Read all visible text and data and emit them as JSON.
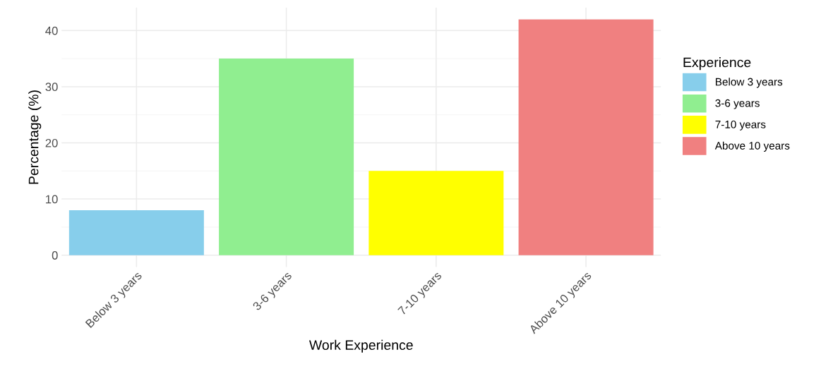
{
  "chart_data": {
    "type": "bar",
    "xlabel": "Work Experience",
    "ylabel": "Percentage (%)",
    "legend_title": "Experience",
    "legend": "right",
    "categories": [
      "Below 3 years",
      "3-6 years",
      "7-10 years",
      "Above 10 years"
    ],
    "series": [
      {
        "name": "Below 3 years",
        "color": "#87ceeb",
        "values": [
          8,
          null,
          null,
          null
        ]
      },
      {
        "name": "3-6 years",
        "color": "#90ee90",
        "values": [
          null,
          35,
          null,
          null
        ]
      },
      {
        "name": "7-10 years",
        "color": "#ffff00",
        "values": [
          null,
          null,
          15,
          null
        ]
      },
      {
        "name": "Above 10 years",
        "color": "#f08080",
        "values": [
          null,
          null,
          null,
          42
        ]
      }
    ],
    "ylim": [
      -2.1,
      44.1
    ],
    "yticks": [
      0,
      10,
      20,
      30,
      40
    ],
    "grid": true
  }
}
